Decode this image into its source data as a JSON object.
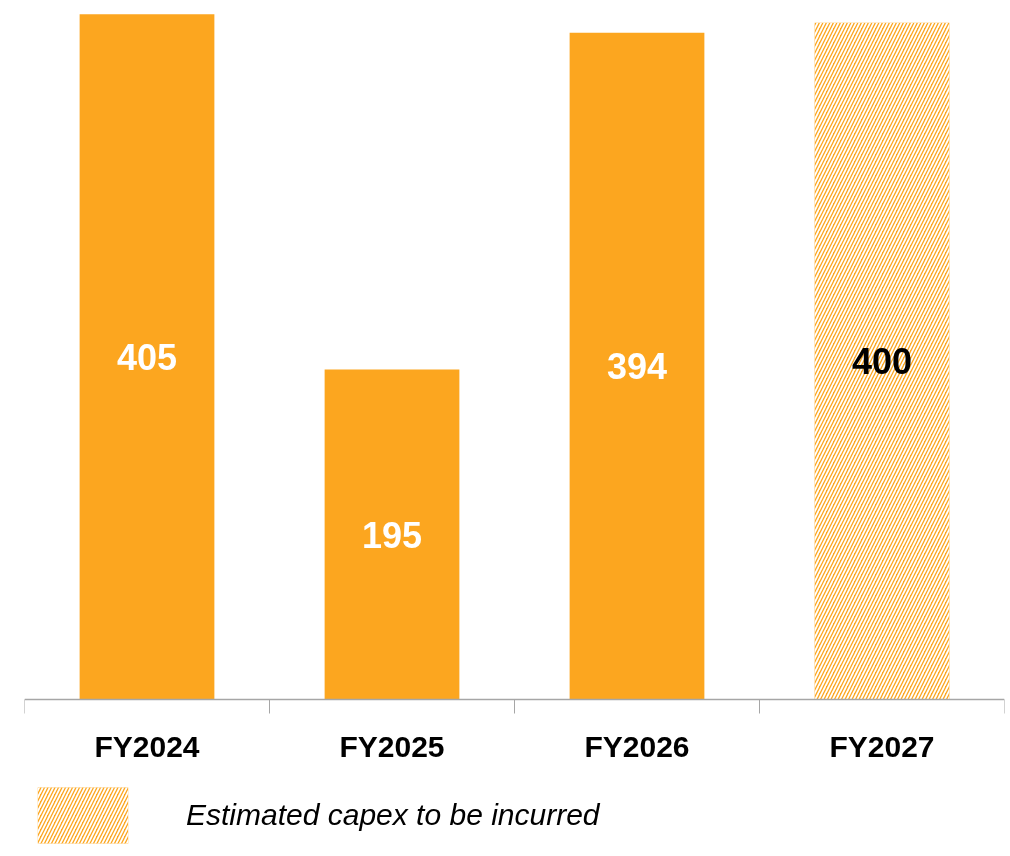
{
  "chart_data": {
    "type": "bar",
    "categories": [
      "FY2024",
      "FY2025",
      "FY2026",
      "FY2027"
    ],
    "series": [
      {
        "color": "#fca61f",
        "values": [
          405,
          195,
          394,
          null
        ]
      },
      {
        "name": "Estimated capex to be incurred",
        "color": "#fca61f",
        "values": [
          null,
          null,
          null,
          400
        ]
      }
    ],
    "data_labels": true,
    "tick_labels": "x",
    "legend": "bottom left"
  }
}
